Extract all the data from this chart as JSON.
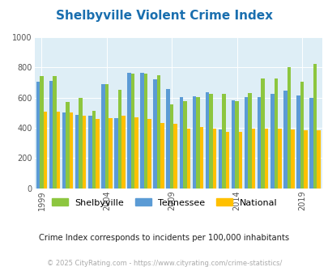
{
  "title": "Shelbyville Violent Crime Index",
  "title_color": "#1a6faf",
  "subtitle": "Crime Index corresponds to incidents per 100,000 inhabitants",
  "footer": "© 2025 CityRating.com - https://www.cityrating.com/crime-statistics/",
  "years": [
    1999,
    2000,
    2001,
    2002,
    2003,
    2004,
    2005,
    2006,
    2007,
    2008,
    2009,
    2010,
    2011,
    2012,
    2013,
    2014,
    2015,
    2016,
    2017,
    2018,
    2019,
    2020
  ],
  "shelbyville": [
    745,
    745,
    570,
    600,
    515,
    690,
    655,
    760,
    760,
    750,
    555,
    575,
    605,
    625,
    625,
    580,
    630,
    730,
    730,
    800,
    705,
    825
  ],
  "tennessee": [
    705,
    710,
    500,
    485,
    480,
    690,
    465,
    765,
    765,
    720,
    660,
    605,
    610,
    635,
    390,
    585,
    605,
    605,
    625,
    645,
    615,
    598
  ],
  "national": [
    510,
    505,
    500,
    480,
    460,
    465,
    480,
    468,
    458,
    430,
    425,
    395,
    405,
    395,
    375,
    375,
    395,
    395,
    395,
    390,
    385,
    385
  ],
  "shelbyville_color": "#8dc63f",
  "tennessee_color": "#5b9bd5",
  "national_color": "#ffc000",
  "bg_color": "#deeef6",
  "ylim": [
    0,
    1000
  ],
  "yticks": [
    0,
    200,
    400,
    600,
    800,
    1000
  ],
  "xtick_positions": [
    1999,
    2004,
    2009,
    2014,
    2019
  ],
  "legend_labels": [
    "Shelbyville",
    "Tennessee",
    "National"
  ]
}
